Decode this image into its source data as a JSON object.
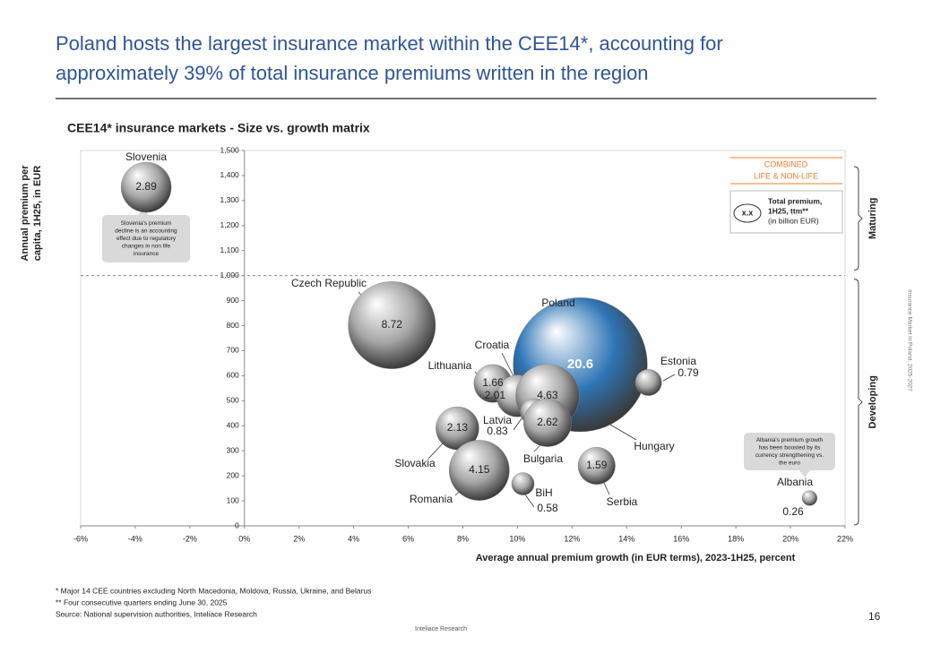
{
  "header": {
    "title_lines": [
      "Poland hosts the largest insurance market within the CEE14*, accounting for",
      "approximately 39% of total insurance premiums written in the region"
    ]
  },
  "chart_data": {
    "type": "bubble",
    "title": "CEE14* insurance markets - Size vs. growth matrix",
    "x_label": "Average annual premium growth (in EUR terms), 2023-1H25, percent",
    "y_label": [
      "Annual premium per",
      "capita, 1H25, in EUR"
    ],
    "categories": [
      "Slovenia",
      "Czech Republic",
      "Poland",
      "Estonia",
      "Lithuania",
      "Croatia",
      "Hungary",
      "Latvia",
      "Bulgaria",
      "Slovakia",
      "Romania",
      "BiH",
      "Serbia",
      "Albania"
    ],
    "x": [
      -3.6,
      5.4,
      12.3,
      14.8,
      9.1,
      10.0,
      11.1,
      10.6,
      11.1,
      7.8,
      8.6,
      10.2,
      12.9,
      20.7
    ],
    "values": [
      1353,
      802,
      644,
      573,
      569,
      519,
      519,
      455,
      412,
      390,
      222,
      168,
      240,
      111
    ],
    "sizes": [
      2.89,
      8.72,
      20.6,
      0.79,
      1.66,
      2.01,
      4.63,
      0.83,
      2.62,
      2.13,
      4.15,
      0.58,
      1.59,
      0.26
    ],
    "colors": [
      "#a6a6a6",
      "#a6a6a6",
      "#2e75b6",
      "#a6a6a6",
      "#a6a6a6",
      "#a6a6a6",
      "#a6a6a6",
      "#a6a6a6",
      "#a6a6a6",
      "#a6a6a6",
      "#a6a6a6",
      "#a6a6a6",
      "#a6a6a6",
      "#a6a6a6"
    ],
    "xlim": [
      -6,
      22
    ],
    "ylim": [
      0,
      1500
    ],
    "xticks": [
      {
        "value": -6,
        "label": "-6%"
      },
      {
        "value": -4,
        "label": "-4%"
      },
      {
        "value": -2,
        "label": "-2%"
      },
      {
        "value": 0,
        "label": "0%"
      },
      {
        "value": 2,
        "label": "2%"
      },
      {
        "value": 4,
        "label": "4%"
      },
      {
        "value": 6,
        "label": "6%"
      },
      {
        "value": 8,
        "label": "8%"
      },
      {
        "value": 10,
        "label": "10%"
      },
      {
        "value": 12,
        "label": "12%"
      },
      {
        "value": 14,
        "label": "14%"
      },
      {
        "value": 16,
        "label": "16%"
      },
      {
        "value": 18,
        "label": "18%"
      },
      {
        "value": 20,
        "label": "20%"
      },
      {
        "value": 22,
        "label": "22%"
      }
    ],
    "yticks": [
      0,
      100,
      200,
      300,
      400,
      500,
      600,
      700,
      800,
      900,
      {
        "value": 1000,
        "label": "1,000"
      },
      {
        "value": 1100,
        "label": "1,100"
      },
      {
        "value": 1200,
        "label": "1,200"
      },
      {
        "value": 1300,
        "label": "1,300"
      },
      {
        "value": 1400,
        "label": "1,400"
      },
      {
        "value": 1500,
        "label": "1,500"
      }
    ],
    "threshold": 1000,
    "segments": [
      "Maturing",
      "Developing"
    ],
    "legend": {
      "heading": [
        "COMBINED",
        "LIFE & NON-LIFE"
      ],
      "symbol": "x.x",
      "text": [
        "Total premium,",
        "1H25, ttm**",
        "(in billion EUR)"
      ]
    },
    "annotations": [
      {
        "lines": [
          "Slovenia's premium",
          "decline is an accounting",
          "effect due to regulatory",
          "changes in non life",
          "insurance"
        ]
      },
      {
        "lines": [
          "Albania's premium growth",
          "has been boosted by its",
          "currency strengthening vs.",
          "the euro"
        ]
      }
    ]
  },
  "footnotes": [
    "* Major 14 CEE countries excluding North Macedonia, Moldova, Russia, Ukraine, and Belarus",
    "** Four consecutive quarters ending June 30, 2025",
    "Source: National supervision authorities, Inteliace Research"
  ],
  "page_number": 16,
  "footer": "Inteliace Research",
  "side_text": "Insurance Market in Poland, 2025-2027"
}
